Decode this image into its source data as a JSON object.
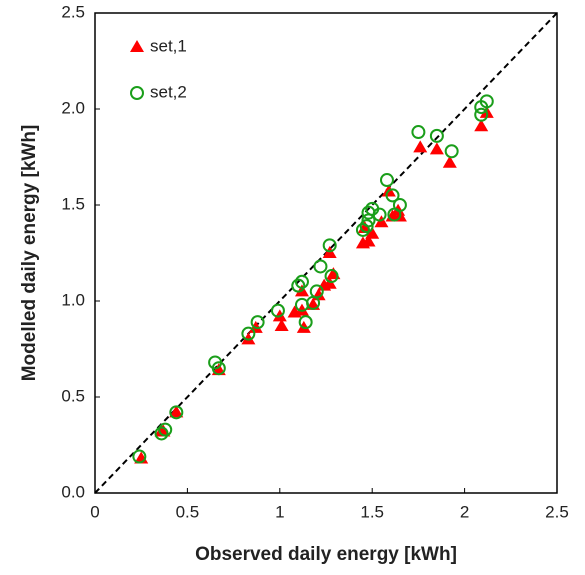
{
  "chart_data": {
    "type": "scatter",
    "xlabel": "Observed daily energy [kWh]",
    "ylabel": "Modelled daily energy [kWh]",
    "xlim": [
      0,
      2.5
    ],
    "xticks": [
      0,
      0.5,
      1,
      1.5,
      2,
      2.5
    ],
    "ylim": [
      0,
      2.5
    ],
    "yticks": [
      {
        "value": 0,
        "label": "0.0"
      },
      0.5,
      {
        "value": 1,
        "label": "1.0"
      },
      1.5,
      {
        "value": 2,
        "label": "2.0"
      },
      2.5
    ],
    "grid": false,
    "legend": "upper left",
    "series": [
      {
        "name": "set,1",
        "color": "#ff0000",
        "marker": "triangle",
        "x": [
          0.25,
          0.36,
          0.37,
          0.44,
          0.67,
          0.83,
          0.87,
          1.01,
          1.0,
          1.08,
          1.12,
          1.12,
          1.13,
          1.18,
          1.21,
          1.24,
          1.27,
          1.29,
          1.27,
          1.45,
          1.48,
          1.5,
          1.55,
          1.46,
          1.59,
          1.61,
          1.65,
          1.64,
          1.76,
          1.85,
          1.92,
          2.09,
          2.12
        ],
        "y": [
          0.18,
          0.32,
          0.32,
          0.42,
          0.64,
          0.8,
          0.86,
          0.87,
          0.92,
          0.94,
          1.05,
          0.95,
          0.86,
          0.98,
          1.03,
          1.08,
          1.09,
          1.14,
          1.25,
          1.3,
          1.31,
          1.35,
          1.41,
          1.38,
          1.57,
          1.44,
          1.44,
          1.47,
          1.8,
          1.79,
          1.72,
          1.91,
          1.98
        ]
      },
      {
        "name": "set,2",
        "color": "#1a9e1a",
        "marker": "circle-open",
        "x": [
          0.24,
          0.36,
          0.38,
          0.44,
          0.65,
          0.67,
          0.83,
          0.88,
          0.99,
          1.1,
          1.12,
          1.12,
          1.14,
          1.18,
          1.2,
          1.22,
          1.27,
          1.28,
          1.47,
          1.48,
          1.5,
          1.54,
          1.48,
          1.45,
          1.58,
          1.61,
          1.62,
          1.65,
          1.75,
          1.85,
          1.93,
          2.09,
          2.09,
          2.12
        ],
        "y": [
          0.19,
          0.31,
          0.33,
          0.42,
          0.68,
          0.65,
          0.83,
          0.89,
          0.95,
          1.08,
          1.1,
          0.98,
          0.89,
          0.99,
          1.05,
          1.18,
          1.29,
          1.13,
          1.39,
          1.46,
          1.48,
          1.45,
          1.42,
          1.37,
          1.63,
          1.55,
          1.45,
          1.5,
          1.88,
          1.86,
          1.78,
          1.97,
          2.01,
          2.04
        ]
      }
    ]
  }
}
